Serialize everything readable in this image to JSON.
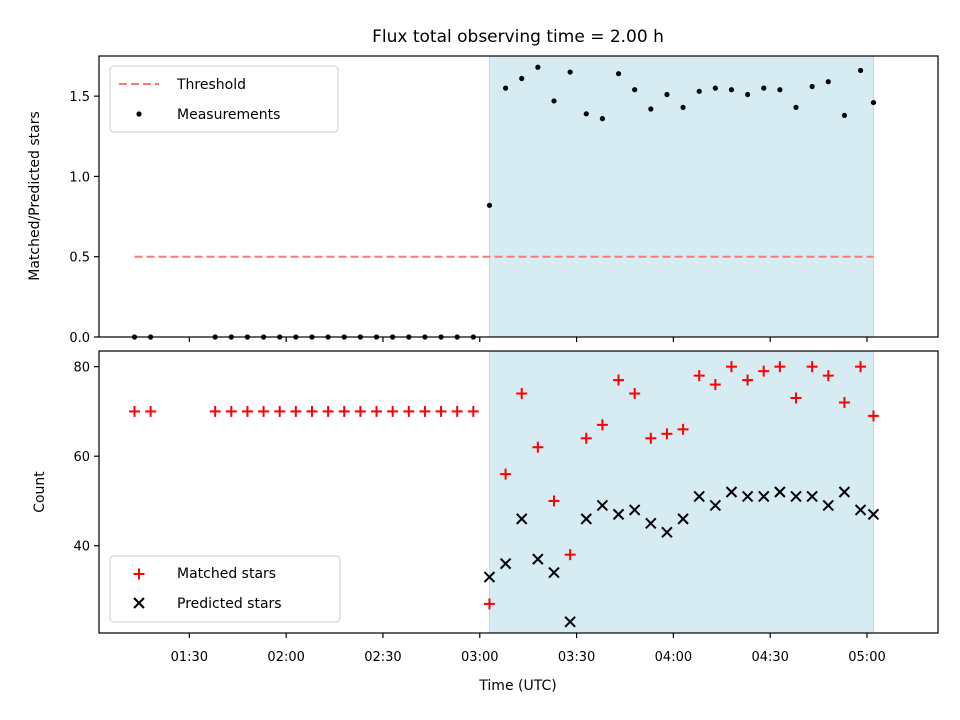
{
  "chart_data": [
    {
      "type": "scatter",
      "title": "Flux total observing time = 2.00 h",
      "xlabel": "",
      "ylabel": "Matched/Predicted stars",
      "x_unit": "minutes since 00:00 UTC",
      "xlim": [
        62,
        322
      ],
      "ylim": [
        0,
        1.75
      ],
      "yticks": [
        0.0,
        0.5,
        1.0,
        1.5
      ],
      "ytick_labels": [
        "0.0",
        "0.5",
        "1.0",
        "1.5"
      ],
      "shaded_interval": {
        "from": 183,
        "to": 302,
        "color": "#add8e6"
      },
      "legend": {
        "position": "upper-left",
        "entries": [
          "Threshold",
          "Measurements"
        ]
      },
      "series": [
        {
          "name": "Threshold",
          "kind": "dashed-line",
          "color": "#ff7777",
          "x": [
            73,
            302
          ],
          "values": [
            0.5,
            0.5
          ]
        },
        {
          "name": "Measurements",
          "kind": "dot",
          "color": "#000000",
          "x": [
            73,
            78,
            98,
            103,
            108,
            113,
            118,
            123,
            128,
            133,
            138,
            143,
            148,
            153,
            158,
            163,
            168,
            173,
            178,
            183,
            188,
            193,
            198,
            203,
            208,
            213,
            218,
            223,
            228,
            233,
            238,
            243,
            248,
            253,
            258,
            263,
            268,
            273,
            278,
            283,
            288,
            293,
            298,
            302
          ],
          "values": [
            0,
            0,
            0,
            0,
            0,
            0,
            0,
            0,
            0,
            0,
            0,
            0,
            0,
            0,
            0,
            0,
            0,
            0,
            0,
            0.82,
            1.55,
            1.61,
            1.68,
            1.47,
            1.65,
            1.39,
            1.36,
            1.64,
            1.54,
            1.42,
            1.51,
            1.43,
            1.53,
            1.55,
            1.54,
            1.51,
            1.55,
            1.54,
            1.43,
            1.56,
            1.59,
            1.38,
            1.66,
            1.46
          ]
        }
      ]
    },
    {
      "type": "scatter",
      "title": "",
      "xlabel": "Time (UTC)",
      "ylabel": "Count",
      "x_unit": "minutes since 00:00 UTC",
      "xlim": [
        62,
        322
      ],
      "ylim": [
        20.5,
        83.5
      ],
      "yticks": [
        40,
        60,
        80
      ],
      "ytick_labels": [
        "40",
        "60",
        "80"
      ],
      "xticks": [
        90,
        120,
        150,
        180,
        210,
        240,
        270,
        300
      ],
      "xtick_labels": [
        "01:30",
        "02:00",
        "02:30",
        "03:00",
        "03:30",
        "04:00",
        "04:30",
        "05:00"
      ],
      "shaded_interval": {
        "from": 183,
        "to": 302,
        "color": "#add8e6"
      },
      "legend": {
        "position": "lower-left",
        "entries": [
          "Matched stars",
          "Predicted stars"
        ]
      },
      "series": [
        {
          "name": "Matched stars",
          "kind": "plus",
          "color": "#ff0000",
          "x": [
            73,
            78,
            98,
            103,
            108,
            113,
            118,
            123,
            128,
            133,
            138,
            143,
            148,
            153,
            158,
            163,
            168,
            173,
            178,
            183,
            188,
            193,
            198,
            203,
            208,
            213,
            218,
            223,
            228,
            233,
            238,
            243,
            248,
            253,
            258,
            263,
            268,
            273,
            278,
            283,
            288,
            293,
            298,
            302
          ],
          "values": [
            70,
            70,
            70,
            70,
            70,
            70,
            70,
            70,
            70,
            70,
            70,
            70,
            70,
            70,
            70,
            70,
            70,
            70,
            70,
            27,
            56,
            74,
            62,
            50,
            38,
            64,
            67,
            77,
            74,
            64,
            65,
            66,
            78,
            76,
            80,
            77,
            79,
            80,
            73,
            80,
            78,
            72,
            80,
            69
          ]
        },
        {
          "name": "Predicted stars",
          "kind": "x",
          "color": "#000000",
          "x": [
            183,
            188,
            193,
            198,
            203,
            208,
            213,
            218,
            223,
            228,
            233,
            238,
            243,
            248,
            253,
            258,
            263,
            268,
            273,
            278,
            283,
            288,
            293,
            298,
            302
          ],
          "values": [
            33,
            36,
            46,
            37,
            34,
            23,
            46,
            49,
            47,
            48,
            45,
            43,
            46,
            51,
            49,
            52,
            51,
            51,
            52,
            51,
            51,
            49,
            52,
            48,
            47
          ]
        }
      ]
    }
  ]
}
